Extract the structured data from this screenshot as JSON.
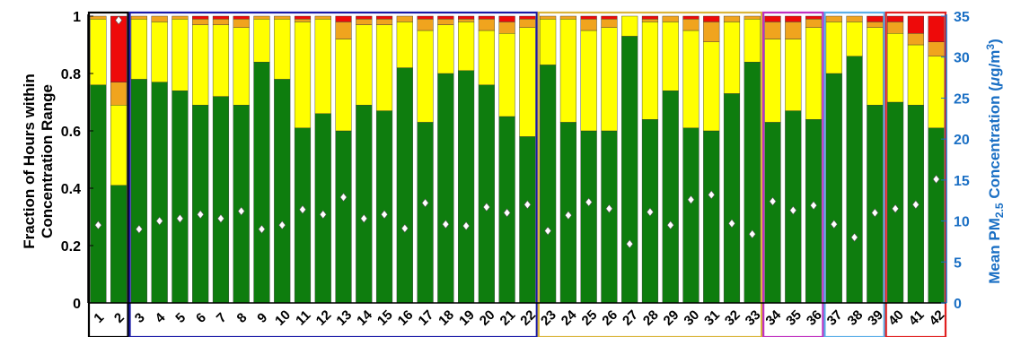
{
  "chart_data": {
    "type": "bar",
    "stacked": true,
    "categories": [
      "1",
      "2",
      "3",
      "4",
      "5",
      "6",
      "7",
      "8",
      "9",
      "10",
      "11",
      "12",
      "13",
      "14",
      "15",
      "16",
      "17",
      "18",
      "19",
      "20",
      "21",
      "22",
      "23",
      "24",
      "25",
      "26",
      "27",
      "28",
      "29",
      "30",
      "31",
      "32",
      "33",
      "34",
      "35",
      "36",
      "37",
      "38",
      "39",
      "40",
      "41",
      "42"
    ],
    "ylabel_lines": [
      "Fraction of Hours within",
      "Concentration Range"
    ],
    "y2label": "Mean PM2.5 Concentration (μg/m3)",
    "y2label_parts": {
      "main": "Mean PM",
      "sub": "2.5",
      "rest1": " Concentration (",
      "mu": "μ",
      "rest2": "g/m",
      "sup": "3",
      "rest3": ")"
    },
    "ylim": [
      0,
      1
    ],
    "y2lim": [
      0,
      35
    ],
    "yticks": [
      "0",
      "0.2",
      "0.4",
      "0.6",
      "0.8",
      "1"
    ],
    "y2ticks": [
      "0",
      "5",
      "10",
      "15",
      "20",
      "25",
      "30",
      "35"
    ],
    "colors": {
      "green": "#0e7d0e",
      "yellow": "#ffff00",
      "orange": "#f0a41e",
      "red": "#ee0a0a",
      "marker": "#ffffff",
      "y2axis": "#1a6fc4"
    },
    "series": [
      {
        "color": "green",
        "values": [
          0.76,
          0.41,
          0.78,
          0.77,
          0.74,
          0.69,
          0.72,
          0.69,
          0.84,
          0.78,
          0.61,
          0.66,
          0.6,
          0.69,
          0.67,
          0.82,
          0.63,
          0.8,
          0.81,
          0.76,
          0.65,
          0.58,
          0.83,
          0.63,
          0.6,
          0.6,
          0.93,
          0.64,
          0.74,
          0.61,
          0.6,
          0.73,
          0.84,
          0.63,
          0.67,
          0.64,
          0.8,
          0.86,
          0.69,
          0.7,
          0.69,
          0.61
        ]
      },
      {
        "color": "yellow",
        "values": [
          0.23,
          0.28,
          0.21,
          0.21,
          0.25,
          0.28,
          0.25,
          0.27,
          0.15,
          0.21,
          0.37,
          0.33,
          0.32,
          0.28,
          0.3,
          0.16,
          0.32,
          0.17,
          0.17,
          0.19,
          0.29,
          0.38,
          0.16,
          0.36,
          0.35,
          0.36,
          0.07,
          0.34,
          0.24,
          0.34,
          0.31,
          0.25,
          0.15,
          0.29,
          0.25,
          0.32,
          0.18,
          0.12,
          0.27,
          0.24,
          0.21,
          0.25
        ]
      },
      {
        "color": "orange",
        "values": [
          0.01,
          0.08,
          0.01,
          0.02,
          0.01,
          0.02,
          0.02,
          0.03,
          0.01,
          0.01,
          0.01,
          0.01,
          0.06,
          0.02,
          0.02,
          0.02,
          0.04,
          0.02,
          0.01,
          0.04,
          0.04,
          0.03,
          0.01,
          0.01,
          0.04,
          0.03,
          0.0,
          0.01,
          0.02,
          0.04,
          0.07,
          0.02,
          0.01,
          0.06,
          0.06,
          0.03,
          0.02,
          0.02,
          0.02,
          0.04,
          0.04,
          0.05
        ]
      },
      {
        "color": "red",
        "values": [
          0.0,
          0.23,
          0.0,
          0.0,
          0.0,
          0.01,
          0.01,
          0.01,
          0.0,
          0.0,
          0.01,
          0.0,
          0.02,
          0.01,
          0.01,
          0.0,
          0.01,
          0.01,
          0.01,
          0.01,
          0.02,
          0.01,
          0.0,
          0.0,
          0.01,
          0.01,
          0.0,
          0.01,
          0.0,
          0.01,
          0.02,
          0.0,
          0.0,
          0.02,
          0.02,
          0.01,
          0.0,
          0.0,
          0.02,
          0.02,
          0.06,
          0.09
        ]
      }
    ],
    "mean_pm25": [
      9.5,
      34.5,
      9.0,
      10.0,
      10.3,
      10.8,
      10.3,
      11.2,
      9.0,
      9.5,
      11.4,
      10.8,
      12.9,
      10.3,
      10.8,
      9.1,
      12.2,
      9.6,
      9.4,
      11.7,
      11.0,
      12.0,
      8.8,
      10.7,
      12.3,
      11.5,
      7.2,
      11.1,
      9.5,
      12.6,
      13.2,
      9.7,
      8.4,
      12.4,
      11.3,
      11.9,
      9.6,
      8.0,
      11.0,
      11.5,
      12.0,
      15.1
    ],
    "groups": [
      {
        "from": 1,
        "to": 2,
        "color": "#000000"
      },
      {
        "from": 3,
        "to": 22,
        "color": "#1a1aa6"
      },
      {
        "from": 23,
        "to": 33,
        "color": "#d9b43a"
      },
      {
        "from": 34,
        "to": 36,
        "color": "#c030c0"
      },
      {
        "from": 37,
        "to": 39,
        "color": "#5aaee8"
      },
      {
        "from": 40,
        "to": 42,
        "color": "#e02020"
      }
    ],
    "grid": false
  }
}
